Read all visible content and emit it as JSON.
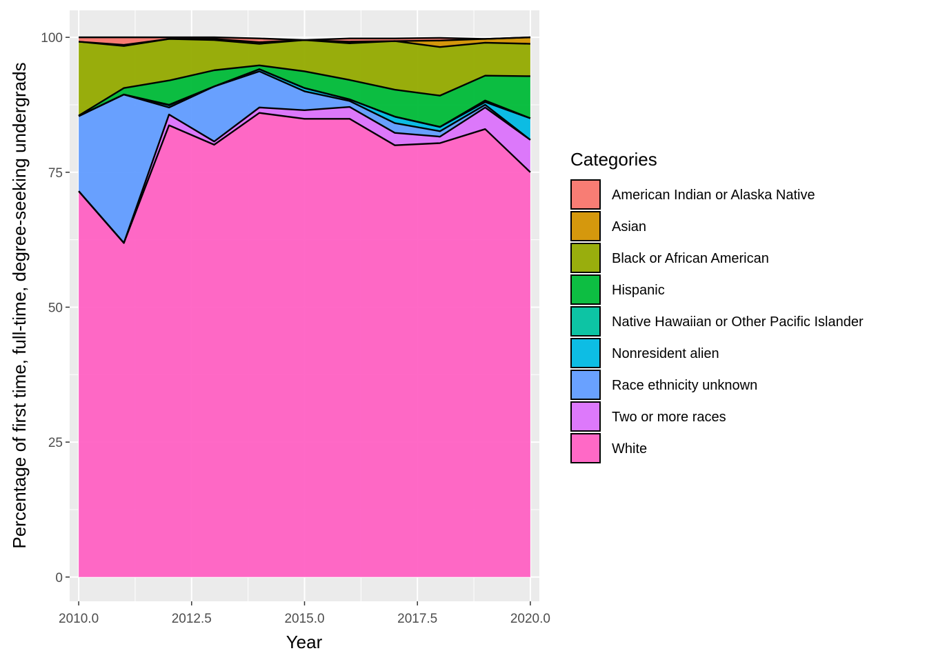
{
  "chart_data": {
    "type": "area",
    "stacked": true,
    "xlabel": "Year",
    "ylabel": "Percentage of first time, full-time, degree-seeking undergrads",
    "x": [
      2010,
      2011,
      2012,
      2013,
      2014,
      2015,
      2016,
      2017,
      2018,
      2019,
      2020
    ],
    "xlim": [
      2009.8,
      2020.2
    ],
    "ylim": [
      -4.5,
      105
    ],
    "xticks": [
      2010.0,
      2012.5,
      2015.0,
      2017.5,
      2020.0
    ],
    "xtick_labels": [
      "2010.0",
      "2012.5",
      "2015.0",
      "2017.5",
      "2020.0"
    ],
    "yticks": [
      0,
      25,
      50,
      75,
      100
    ],
    "ytick_labels": [
      "0",
      "25",
      "50",
      "75",
      "100"
    ],
    "grid": true,
    "legend": {
      "title": "Categories",
      "position": "right"
    },
    "series": [
      {
        "name": "American Indian or Alaska Native",
        "color": "#F8766D",
        "values": [
          0.8,
          1.4,
          0.3,
          0.3,
          0.7,
          0.0,
          0.6,
          0.5,
          0.5,
          0.0,
          0.0
        ]
      },
      {
        "name": "Asian",
        "color": "#D39200",
        "values": [
          0.0,
          0.2,
          0.0,
          0.2,
          0.3,
          0.0,
          0.3,
          0.0,
          1.2,
          0.7,
          1.2
        ]
      },
      {
        "name": "Black or African American",
        "color": "#93AA00",
        "values": [
          13.7,
          7.8,
          7.7,
          5.6,
          4.0,
          5.8,
          6.8,
          9.0,
          9.0,
          6.1,
          6.0
        ]
      },
      {
        "name": "Hispanic",
        "color": "#00BA38",
        "values": [
          0.1,
          1.2,
          4.5,
          3.0,
          0.7,
          3.1,
          3.6,
          5.0,
          5.8,
          4.6,
          7.8
        ]
      },
      {
        "name": "Native Hawaiian or Other Pacific Islander",
        "color": "#00C19F",
        "values": [
          0.0,
          0.0,
          0.1,
          0.0,
          0.0,
          0.0,
          0.0,
          0.0,
          0.0,
          0.3,
          0.0
        ]
      },
      {
        "name": "Nonresident alien",
        "color": "#00B9E3",
        "values": [
          0.0,
          0.0,
          0.4,
          0.0,
          0.4,
          0.6,
          0.3,
          1.2,
          0.8,
          0.5,
          4.0
        ]
      },
      {
        "name": "Race ethnicity unknown",
        "color": "#619CFF",
        "values": [
          13.9,
          27.5,
          1.3,
          10.2,
          6.7,
          3.5,
          1.1,
          1.8,
          1.0,
          0.5,
          0.0
        ]
      },
      {
        "name": "Two or more races",
        "color": "#DB72FB",
        "values": [
          0.0,
          0.0,
          2.0,
          0.6,
          1.0,
          1.6,
          2.2,
          2.3,
          1.2,
          4.0,
          6.0
        ]
      },
      {
        "name": "White",
        "color": "#FF61C3",
        "values": [
          71.5,
          61.9,
          83.7,
          80.1,
          86.0,
          84.9,
          84.9,
          80.0,
          80.4,
          83.0,
          75.0
        ]
      }
    ]
  }
}
